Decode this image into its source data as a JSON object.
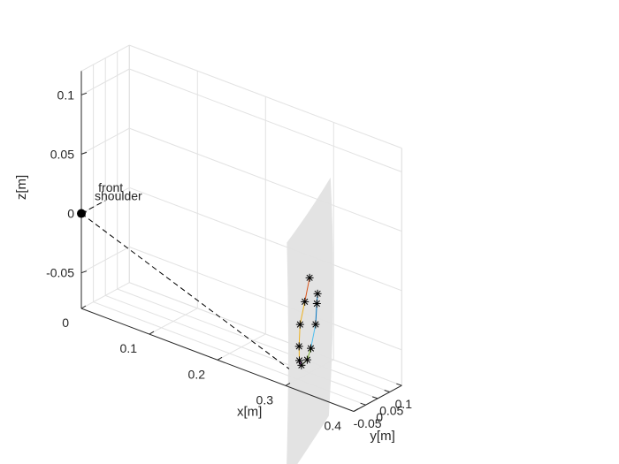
{
  "chart_data": {
    "type": "scatter",
    "plot3d": true,
    "grid": true,
    "title": "",
    "xlabel": "x[m]",
    "ylabel": "y[m]",
    "zlabel": "z[m]",
    "xlim": [
      0,
      0.4
    ],
    "ylim": [
      -0.1,
      0.1
    ],
    "zlim": [
      -0.08,
      0.12
    ],
    "xticks": [
      0,
      0.1,
      0.2,
      0.3,
      0.4
    ],
    "xtick_labels": [
      "0",
      "0.1",
      "0.2",
      "0.3",
      "0.4"
    ],
    "yticks": [
      -0.05,
      0,
      0.05,
      0.1
    ],
    "ytick_labels": [
      "-0.05",
      "0",
      "0.05",
      "0.1"
    ],
    "zticks": [
      -0.05,
      0,
      0.05,
      0.1
    ],
    "ztick_labels": [
      "-0.05",
      "0",
      "0.05",
      "0.1"
    ],
    "shoulder": {
      "label": "shoulder",
      "x": 0,
      "y": -0.1,
      "z": 0
    },
    "front": {
      "label": "front",
      "x": 0,
      "y": 0,
      "z": 0
    },
    "surface_x": 0.3,
    "surface_color": "#e3e3e3",
    "trajectory": {
      "marker": "*",
      "points": [
        {
          "x": 0.3,
          "y": 0.0,
          "z": 0.0
        },
        {
          "x": 0.3,
          "y": -0.02,
          "z": -0.018
        },
        {
          "x": 0.3,
          "y": -0.04,
          "z": -0.035
        },
        {
          "x": 0.3,
          "y": -0.044,
          "z": -0.053
        },
        {
          "x": 0.3,
          "y": -0.043,
          "z": -0.065
        },
        {
          "x": 0.3,
          "y": -0.034,
          "z": -0.07
        },
        {
          "x": 0.3,
          "y": -0.01,
          "z": -0.068
        },
        {
          "x": 0.3,
          "y": 0.005,
          "z": -0.06
        },
        {
          "x": 0.3,
          "y": 0.025,
          "z": -0.042
        },
        {
          "x": 0.3,
          "y": 0.03,
          "z": -0.025
        },
        {
          "x": 0.3,
          "y": 0.033,
          "z": -0.017
        }
      ],
      "segment_colors": [
        "#d95319",
        "#edb120",
        "#edb120",
        "#edb120",
        "#7e2f8e",
        "#77ac30",
        "#77ac30",
        "#4dbeee",
        "#0072bd",
        "#0072bd"
      ]
    }
  }
}
